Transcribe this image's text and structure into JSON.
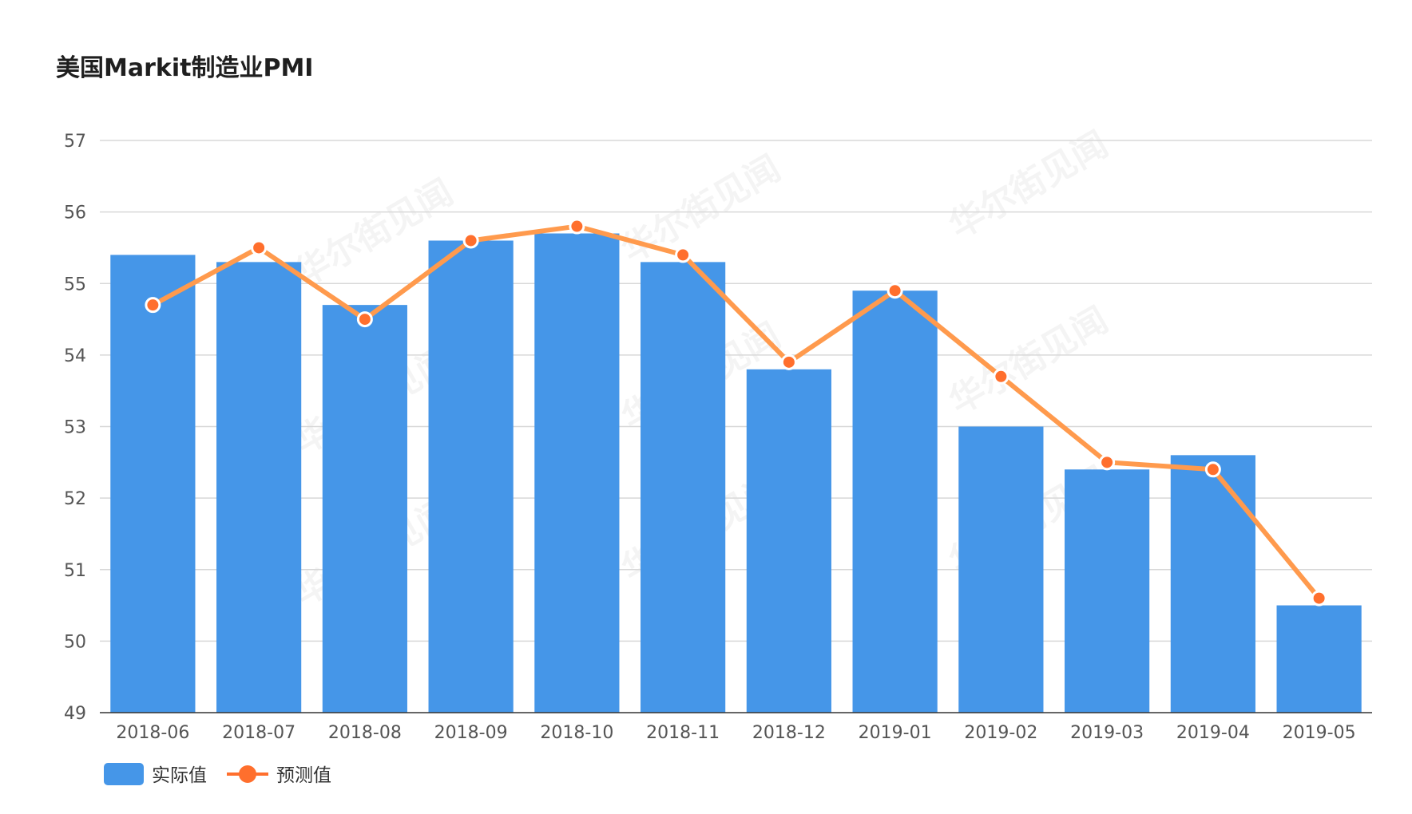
{
  "title": "美国Markit制造业PMI",
  "watermark": "华尔街见闻",
  "colors": {
    "bar": "#4596e8",
    "line": "#ff9a4d",
    "point": "#ff6f2d",
    "grid": "#d8d8d8",
    "axis": "#333333"
  },
  "chart_data": {
    "type": "bar",
    "categories": [
      "2018-06",
      "2018-07",
      "2018-08",
      "2018-09",
      "2018-10",
      "2018-11",
      "2018-12",
      "2019-01",
      "2019-02",
      "2019-03",
      "2019-04",
      "2019-05"
    ],
    "series": [
      {
        "name": "实际值",
        "type": "bar",
        "values": [
          55.4,
          55.3,
          54.7,
          55.6,
          55.7,
          55.3,
          53.8,
          54.9,
          53.0,
          52.4,
          52.6,
          50.5
        ]
      },
      {
        "name": "预测值",
        "type": "line",
        "values": [
          54.7,
          55.5,
          54.5,
          55.6,
          55.8,
          55.4,
          53.9,
          54.9,
          53.7,
          52.5,
          52.4,
          50.6
        ]
      }
    ],
    "yticks": [
      49,
      50,
      51,
      52,
      53,
      54,
      55,
      56,
      57
    ],
    "ylim": [
      49,
      57
    ],
    "grid": true,
    "legend_position": "bottom-left"
  }
}
